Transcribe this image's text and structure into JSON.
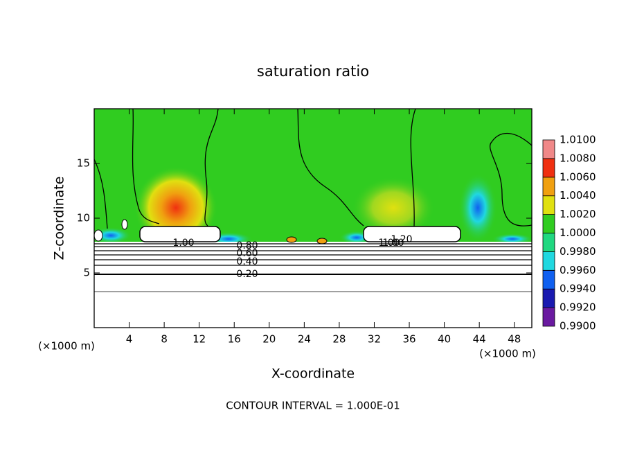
{
  "chart_data": {
    "type": "contour",
    "title": "saturation ratio",
    "x_label": "X-coordinate",
    "y_label": "Z-coordinate",
    "x_unit_label": "(×1000 m)",
    "y_unit_label": "(×1000 m)",
    "footer": "CONTOUR INTERVAL = 1.000E-01",
    "xlim": [
      0,
      50
    ],
    "ylim": [
      0,
      20
    ],
    "xticks": [
      4,
      8,
      12,
      16,
      20,
      24,
      28,
      32,
      36,
      40,
      44,
      48
    ],
    "yticks": [
      5,
      10,
      15
    ],
    "contour_labels": [
      "1.00",
      "1.00",
      "0.80",
      "0.60",
      "0.40",
      "0.20",
      "1.20",
      "1.00"
    ],
    "colorbar": {
      "ticks": [
        {
          "value": 0.99,
          "label": "0.9900"
        },
        {
          "value": 0.992,
          "label": "0.9920"
        },
        {
          "value": 0.994,
          "label": "0.9940"
        },
        {
          "value": 0.996,
          "label": "0.9960"
        },
        {
          "value": 0.998,
          "label": "0.9980"
        },
        {
          "value": 1.0,
          "label": "1.0000"
        },
        {
          "value": 1.002,
          "label": "1.0020"
        },
        {
          "value": 1.004,
          "label": "1.0040"
        },
        {
          "value": 1.006,
          "label": "1.0060"
        },
        {
          "value": 1.008,
          "label": "1.0080"
        },
        {
          "value": 1.01,
          "label": "1.0100"
        }
      ],
      "colors": [
        "#6a1aa0",
        "#1a1ab0",
        "#1060f0",
        "#20d8e0",
        "#20d880",
        "#30cc20",
        "#e0e010",
        "#f0a010",
        "#f03010",
        "#f08888"
      ]
    }
  }
}
